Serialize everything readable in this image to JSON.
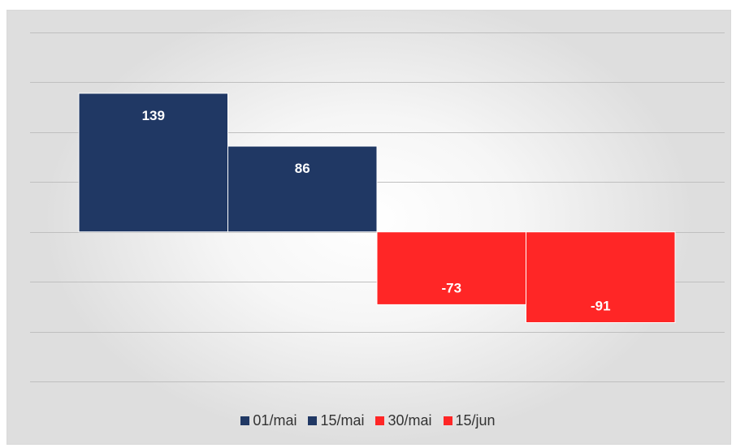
{
  "chart_data": {
    "type": "bar",
    "title": "",
    "xlabel": "",
    "ylabel": "",
    "ylim": [
      -150,
      200
    ],
    "grid": true,
    "legend_position": "bottom",
    "categories": [
      "01/mai",
      "15/mai",
      "30/mai",
      "15/jun"
    ],
    "values": [
      139,
      86,
      -73,
      -91
    ],
    "data_labels": [
      "139",
      "86",
      "-73",
      "-91"
    ],
    "colors": {
      "01/mai": "#203864",
      "15/mai": "#203864",
      "30/mai": "#FF2626",
      "15/jun": "#FF2626"
    }
  }
}
